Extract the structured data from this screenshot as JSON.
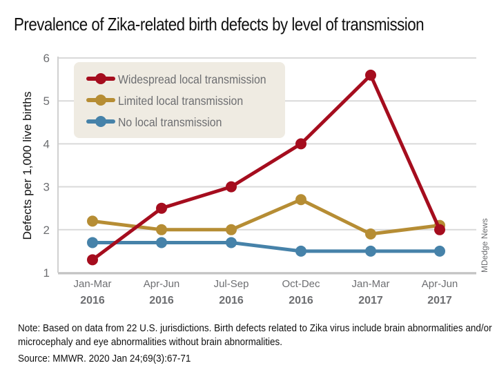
{
  "chart_data": {
    "type": "line",
    "title": "Prevalence of Zika-related birth defects by level of transmission",
    "xlabel": "",
    "ylabel": "Defects per 1,000 live births",
    "ylim": [
      1,
      6
    ],
    "yticks": [
      "1",
      "2",
      "3",
      "4",
      "5",
      "6"
    ],
    "grid": true,
    "legend_position": "top-left",
    "categories": [
      [
        "Jan-Mar",
        "2016"
      ],
      [
        "Apr-Jun",
        "2016"
      ],
      [
        "Jul-Sep",
        "2016"
      ],
      [
        "Oct-Dec",
        "2016"
      ],
      [
        "Jan-Mar",
        "2017"
      ],
      [
        "Apr-Jun",
        "2017"
      ]
    ],
    "series": [
      {
        "name": "Widespread local transmission",
        "color": "#a50d1e",
        "values": [
          1.3,
          2.5,
          3.0,
          4.0,
          5.6,
          2.0
        ]
      },
      {
        "name": "Limited local transmission",
        "color": "#b68d34",
        "values": [
          2.2,
          2.0,
          2.0,
          2.7,
          1.9,
          2.1
        ]
      },
      {
        "name": "No local transmission",
        "color": "#4682a9",
        "values": [
          1.7,
          1.7,
          1.7,
          1.5,
          1.5,
          1.5
        ]
      }
    ]
  },
  "credit": "MDedge News",
  "note_label": "Note:",
  "note_text": " Based on data from 22 U.S. jurisdictions. Birth defects related to Zika virus include brain abnormalities and/or microcephaly and eye abnormalities without brain abnormalities.",
  "source_label": "Source:",
  "source_text": " MMWR. 2020 Jan 24;69(3):67-71"
}
